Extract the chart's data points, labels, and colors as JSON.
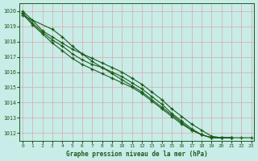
{
  "title": "Graphe pression niveau de la mer (hPa)",
  "bg_color": "#c8ece8",
  "grid_color": "#dba8a8",
  "line_color": "#1a5c1a",
  "xlim": [
    -0.3,
    23.3
  ],
  "ylim": [
    1011.5,
    1020.5
  ],
  "yticks": [
    1012,
    1013,
    1014,
    1015,
    1016,
    1017,
    1018,
    1019,
    1020
  ],
  "xticks": [
    0,
    1,
    2,
    3,
    4,
    5,
    6,
    7,
    8,
    9,
    10,
    11,
    12,
    13,
    14,
    15,
    16,
    17,
    18,
    19,
    20,
    21,
    22,
    23
  ],
  "series": [
    [
      1020.0,
      1019.4,
      1018.7,
      1018.3,
      1017.9,
      1017.5,
      1017.2,
      1016.9,
      1016.6,
      1016.3,
      1016.0,
      1015.6,
      1015.2,
      1014.7,
      1014.2,
      1013.6,
      1013.1,
      1012.6,
      1012.2,
      1011.8,
      1011.7,
      1011.7,
      null,
      null
    ],
    [
      1019.9,
      1019.2,
      1018.6,
      1018.1,
      1017.7,
      1017.2,
      1016.8,
      1016.5,
      1016.3,
      1016.0,
      1015.7,
      1015.3,
      1014.9,
      1014.4,
      1013.9,
      1013.3,
      1012.8,
      1012.3,
      1011.9,
      1011.7,
      1011.7,
      1011.7,
      null,
      null
    ],
    [
      1019.8,
      1019.1,
      1018.5,
      1017.9,
      1017.4,
      1016.9,
      1016.5,
      1016.2,
      1015.9,
      1015.6,
      1015.3,
      1015.0,
      1014.6,
      1014.1,
      1013.6,
      1013.1,
      1012.6,
      1012.2,
      1011.9,
      1011.7,
      1011.7,
      1011.7,
      null,
      null
    ],
    [
      1019.7,
      null,
      null,
      1018.8,
      1018.3,
      1017.7,
      1017.2,
      1016.7,
      1016.3,
      1015.9,
      1015.5,
      1015.1,
      1014.7,
      1014.2,
      1013.7,
      1013.2,
      1012.7,
      1012.2,
      1011.9,
      1011.7,
      1011.7,
      1011.7,
      1011.7,
      1011.7
    ]
  ]
}
